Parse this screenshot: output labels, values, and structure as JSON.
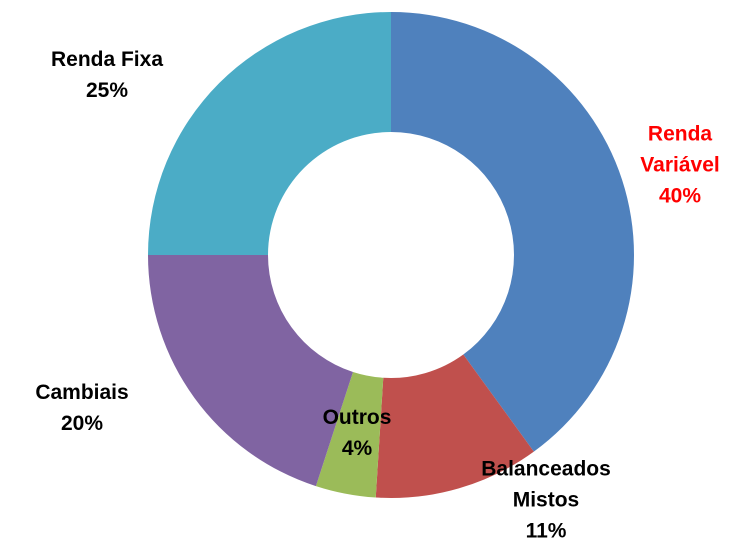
{
  "chart_data": {
    "type": "donut",
    "categories": [
      "Renda Variável",
      "Balanceados Mistos",
      "Outros",
      "Cambiais",
      "Renda Fixa"
    ],
    "values": [
      40,
      11,
      4,
      20,
      25
    ],
    "value_labels": [
      "40%",
      "11%",
      "4%",
      "20%",
      "25%"
    ],
    "colors": [
      "#4f81bd",
      "#c0504d",
      "#9bbb59",
      "#8064a2",
      "#4bacc6"
    ],
    "label_colors": [
      "#ff0000",
      "#000000",
      "#000000",
      "#000000",
      "#000000"
    ]
  }
}
